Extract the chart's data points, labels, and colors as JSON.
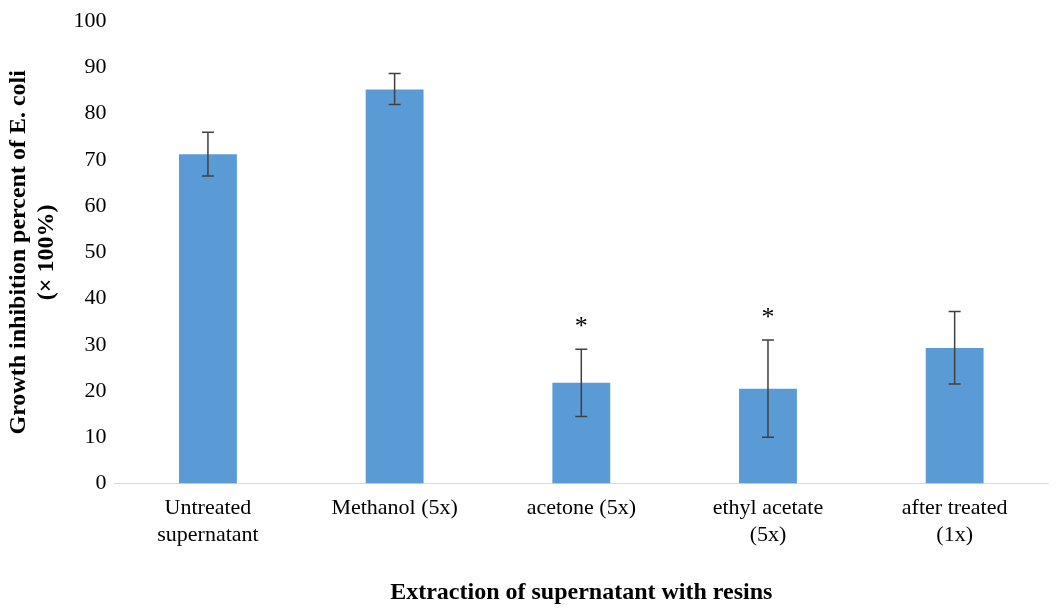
{
  "chart_data": {
    "type": "bar",
    "xlabel": "Extraction of supernatant with resins",
    "ylabel": "Growth inhibition percent of E. coli (× 100%)",
    "categories": [
      "Untreated supernatant",
      "Methanol (5x)",
      "acetone (5x)",
      "ethyl acetate (5x)",
      "after treated (1x)"
    ],
    "values": [
      71.2,
      85.2,
      21.8,
      20.5,
      29.3
    ],
    "errors": [
      [
        66.5,
        76
      ],
      [
        82,
        88.7
      ],
      [
        14.5,
        29
      ],
      [
        10,
        31
      ],
      [
        21.5,
        37.2
      ]
    ],
    "color": "#5b9bd5",
    "ylim": [
      0,
      100
    ],
    "yticks": [
      0,
      10,
      20,
      30,
      40,
      50,
      60,
      70,
      80,
      90,
      100
    ],
    "grid": false,
    "legend": false,
    "annotations": [
      {
        "text": "*",
        "x": "acetone (5x)",
        "y": 29
      },
      {
        "text": "*",
        "x": "ethyl acetate (5x)",
        "y": 31
      }
    ]
  }
}
